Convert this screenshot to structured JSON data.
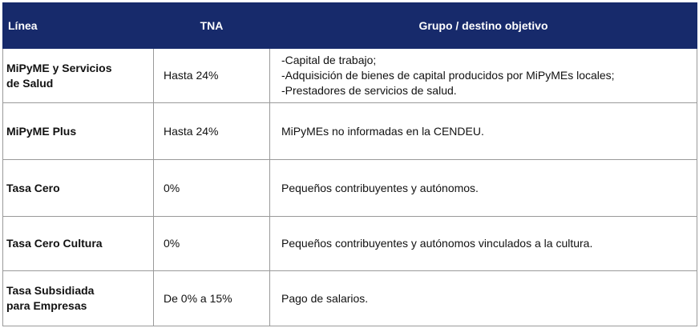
{
  "table": {
    "header": [
      "Línea",
      "TNA",
      "Grupo / destino objetivo"
    ],
    "rows": [
      [
        [
          "MiPyME y Servicios",
          "de Salud"
        ],
        "Hasta 24%",
        [
          "-Capital de trabajo;",
          "-Adquisición de bienes de capital producidos por MiPyMEs locales;",
          "-Prestadores de servicios de salud."
        ]
      ],
      [
        "MiPyME Plus",
        "Hasta 24%",
        "MiPyMEs no informadas en la CENDEU."
      ],
      [
        "Tasa Cero",
        "0%",
        "Pequeños contribuyentes y autónomos."
      ],
      [
        "Tasa Cero Cultura",
        "0%",
        "Pequeños contribuyentes y autónomos vinculados a la cultura."
      ],
      [
        [
          "Tasa Subsidiada",
          "para Empresas"
        ],
        "De 0% a 15%",
        "Pago de salarios."
      ]
    ]
  }
}
